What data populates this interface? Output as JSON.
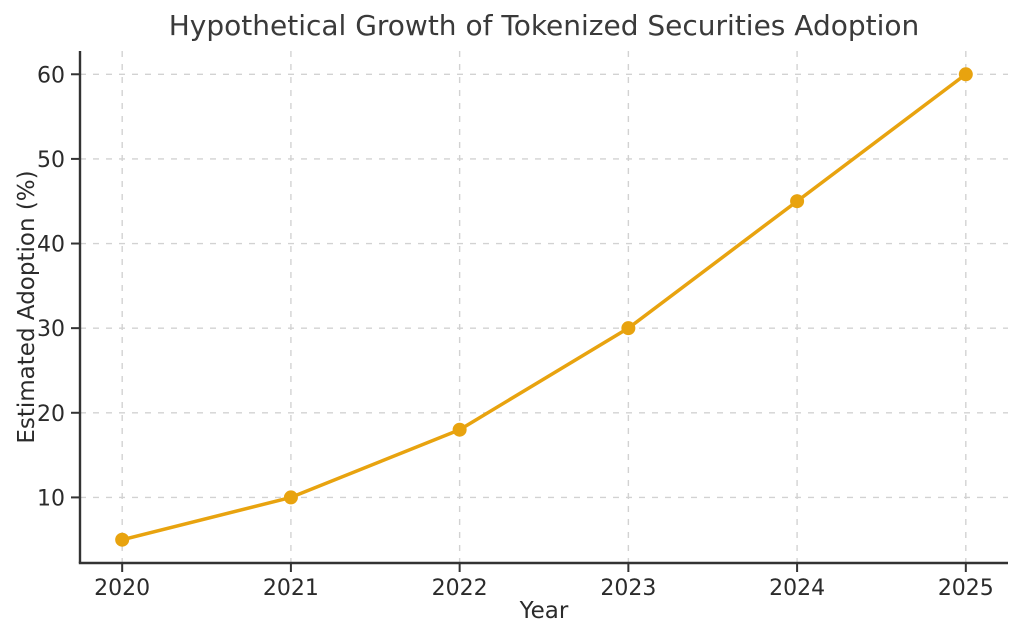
{
  "chart_data": {
    "type": "line",
    "title": "Hypothetical Growth of Tokenized Securities Adoption",
    "xlabel": "Year",
    "ylabel": "Estimated Adoption (%)",
    "categories": [
      2020,
      2021,
      2022,
      2023,
      2024,
      2025
    ],
    "series": [
      {
        "name": "Estimated Adoption",
        "values": [
          5,
          10,
          18,
          30,
          45,
          60
        ]
      }
    ],
    "xticks": [
      2020,
      2021,
      2022,
      2023,
      2024,
      2025
    ],
    "yticks": [
      10,
      20,
      30,
      40,
      50,
      60
    ],
    "xlim": [
      2019.75,
      2025.25
    ],
    "ylim": [
      2.25,
      62.75
    ],
    "grid": true,
    "grid_style": "dashed",
    "legend": "none",
    "colors": {
      "line": "#E8A30F",
      "marker": "#E8A30F",
      "grid": "#d2d2d2",
      "spine": "#333333",
      "tick_text": "#2b2b2b",
      "title_text": "#3a3a3a",
      "background": "#ffffff"
    }
  }
}
